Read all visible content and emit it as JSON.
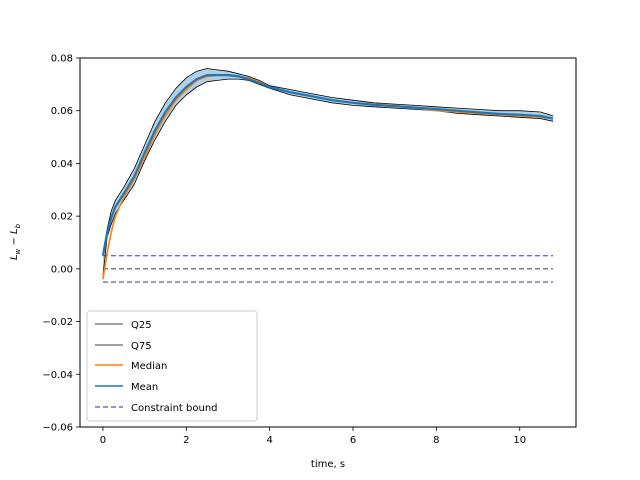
{
  "chart_data": {
    "type": "line",
    "title": "",
    "xlabel": "time, s",
    "ylabel": "L_w − L_b",
    "ylabel_parts": {
      "base1": "L",
      "sub1": "w",
      "op": " − ",
      "base2": "L",
      "sub2": "b"
    },
    "xlim": [
      -0.55,
      11.35
    ],
    "ylim": [
      -0.06,
      0.08
    ],
    "xticks": [
      0,
      2,
      4,
      6,
      8,
      10
    ],
    "yticks": [
      -0.06,
      -0.04,
      -0.02,
      0.0,
      0.02,
      0.04,
      0.06,
      0.08
    ],
    "xtick_labels": [
      "0",
      "2",
      "4",
      "6",
      "8",
      "10"
    ],
    "ytick_labels": [
      "−0.06",
      "−0.04",
      "−0.02",
      "0.00",
      "0.02",
      "0.04",
      "0.06",
      "0.08"
    ],
    "grid": false,
    "legend_position": "lower-left",
    "legend": [
      "Q25",
      "Q75",
      "Median",
      "Mean",
      "Constraint bound"
    ],
    "x": [
      0,
      0.1,
      0.2,
      0.3,
      0.5,
      0.75,
      1.0,
      1.25,
      1.5,
      1.75,
      2.0,
      2.25,
      2.5,
      2.75,
      3.0,
      3.25,
      3.5,
      3.75,
      4.0,
      4.5,
      5.0,
      5.5,
      6.0,
      6.5,
      7.0,
      7.5,
      8.0,
      8.5,
      9.0,
      9.5,
      10.0,
      10.5,
      10.8
    ],
    "series": [
      {
        "name": "Q25",
        "color": "#000000",
        "style": "solid",
        "values": [
          -0.003,
          0.012,
          0.017,
          0.021,
          0.026,
          0.032,
          0.041,
          0.049,
          0.056,
          0.062,
          0.066,
          0.069,
          0.071,
          0.0715,
          0.072,
          0.072,
          0.0715,
          0.07,
          0.0685,
          0.066,
          0.0645,
          0.063,
          0.062,
          0.0615,
          0.061,
          0.0605,
          0.06,
          0.059,
          0.0585,
          0.058,
          0.0575,
          0.057,
          0.056
        ]
      },
      {
        "name": "Q75",
        "color": "#000000",
        "style": "solid",
        "values": [
          0.006,
          0.015,
          0.022,
          0.026,
          0.031,
          0.038,
          0.047,
          0.056,
          0.063,
          0.0685,
          0.0725,
          0.075,
          0.076,
          0.0755,
          0.075,
          0.074,
          0.073,
          0.0715,
          0.0695,
          0.068,
          0.0665,
          0.065,
          0.064,
          0.063,
          0.0625,
          0.062,
          0.0615,
          0.061,
          0.0605,
          0.06,
          0.06,
          0.0595,
          0.058
        ]
      },
      {
        "name": "Median",
        "color": "#ff7f0e",
        "style": "solid",
        "values": [
          -0.004,
          0.006,
          0.014,
          0.02,
          0.027,
          0.034,
          0.042,
          0.051,
          0.058,
          0.064,
          0.068,
          0.0715,
          0.073,
          0.0735,
          0.0735,
          0.073,
          0.0725,
          0.071,
          0.069,
          0.067,
          0.0655,
          0.064,
          0.063,
          0.0625,
          0.062,
          0.061,
          0.06,
          0.0595,
          0.059,
          0.0585,
          0.058,
          0.0575,
          0.057
        ]
      },
      {
        "name": "Mean",
        "color": "#1f77b4",
        "style": "solid",
        "values": [
          0.005,
          0.0135,
          0.0195,
          0.0235,
          0.0285,
          0.035,
          0.044,
          0.0525,
          0.0595,
          0.065,
          0.069,
          0.072,
          0.0735,
          0.0735,
          0.0735,
          0.073,
          0.072,
          0.0705,
          0.069,
          0.067,
          0.0655,
          0.064,
          0.063,
          0.0622,
          0.0617,
          0.0612,
          0.0606,
          0.06,
          0.0594,
          0.0588,
          0.0585,
          0.058,
          0.057
        ]
      }
    ],
    "mean_band": {
      "color": "#1f77b4",
      "opacity": 0.35
    },
    "reference_lines": [
      {
        "name": "Constraint bound",
        "y": 0.005,
        "x_range": [
          0,
          10.8
        ],
        "color": "#6a6ae6",
        "style": "dashed"
      },
      {
        "name": "Constraint bound",
        "y": -0.005,
        "x_range": [
          0,
          10.8
        ],
        "color": "#6a6ae6",
        "style": "dashed"
      },
      {
        "name": "zero",
        "y": 0.0,
        "x_range": [
          0,
          10.8
        ],
        "color": "#6e6e6e",
        "style": "dashed"
      }
    ]
  }
}
